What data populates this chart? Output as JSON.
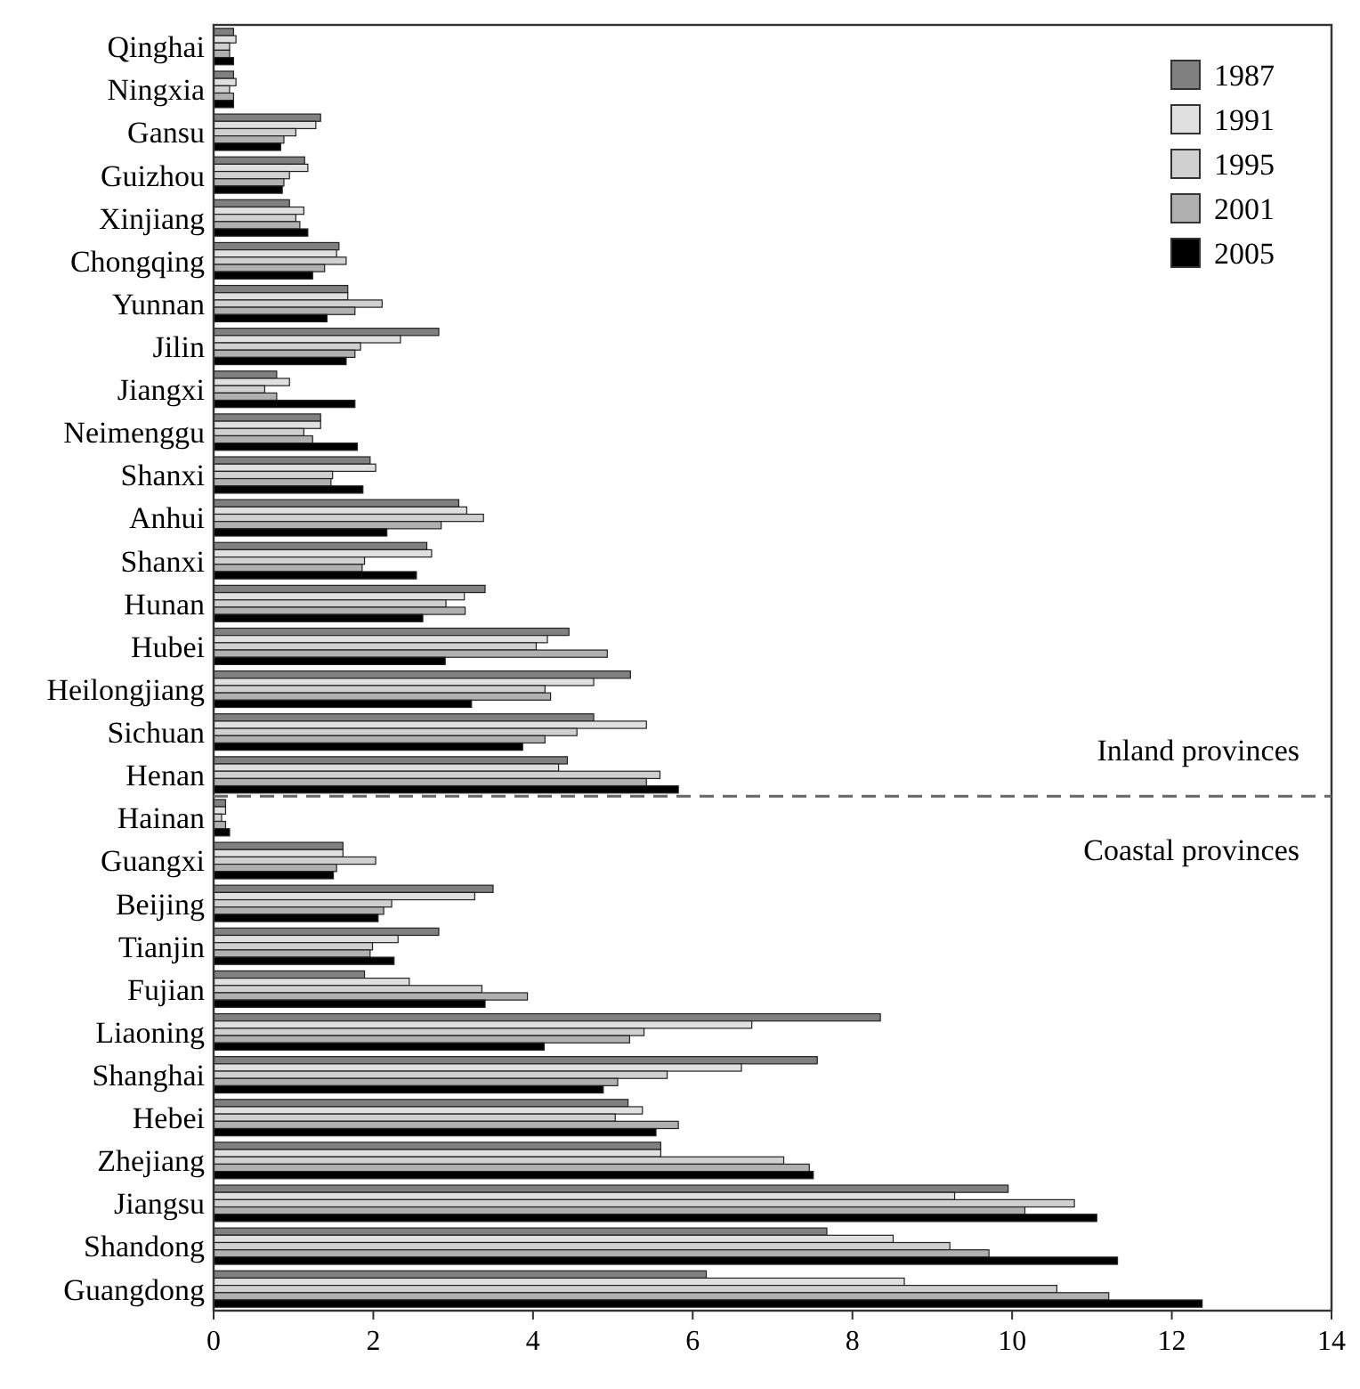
{
  "chart_data": {
    "type": "bar",
    "orientation": "horizontal",
    "categories": [
      "Qinghai",
      "Ningxia",
      "Gansu",
      "Guizhou",
      "Xinjiang",
      "Chongqing",
      "Yunnan",
      "Jilin",
      "Jiangxi",
      "Neimenggu",
      "Shanxi",
      "Anhui",
      "Shanxi",
      "Hunan",
      "Hubei",
      "Heilongjiang",
      "Sichuan",
      "Henan",
      "Hainan",
      "Guangxi",
      "Beijing",
      "Tianjin",
      "Fujian",
      "Liaoning",
      "Shanghai",
      "Hebei",
      "Zhejiang",
      "Jiangsu",
      "Shandong",
      "Guangdong"
    ],
    "series": [
      {
        "name": "1987",
        "color": "#808080",
        "values": [
          0.25,
          0.25,
          1.34,
          1.14,
          0.95,
          1.57,
          1.68,
          2.82,
          0.79,
          1.34,
          1.96,
          3.07,
          2.67,
          3.4,
          4.45,
          5.22,
          4.76,
          4.43,
          0.15,
          1.62,
          3.5,
          2.82,
          1.89,
          8.35,
          7.56,
          5.19,
          5.6,
          9.95,
          7.68,
          6.17
        ]
      },
      {
        "name": "1991",
        "color": "#e0e0e0",
        "values": [
          0.28,
          0.28,
          1.28,
          1.18,
          1.13,
          1.54,
          1.68,
          2.34,
          0.95,
          1.34,
          2.03,
          3.17,
          2.73,
          3.14,
          4.18,
          4.76,
          5.42,
          4.32,
          0.15,
          1.62,
          3.27,
          2.31,
          2.45,
          6.74,
          6.61,
          5.37,
          5.6,
          9.28,
          8.51,
          8.65
        ]
      },
      {
        "name": "1995",
        "color": "#d0d0d0",
        "values": [
          0.2,
          0.2,
          1.03,
          0.95,
          1.03,
          1.66,
          2.11,
          1.84,
          0.64,
          1.13,
          1.49,
          3.38,
          1.89,
          2.91,
          4.04,
          4.15,
          4.55,
          5.59,
          0.1,
          2.03,
          2.23,
          1.99,
          3.36,
          5.39,
          5.68,
          5.03,
          7.14,
          10.78,
          9.22,
          10.56
        ]
      },
      {
        "name": "2001",
        "color": "#b0b0b0",
        "values": [
          0.2,
          0.25,
          0.88,
          0.88,
          1.08,
          1.39,
          1.77,
          1.77,
          0.79,
          1.24,
          1.47,
          2.85,
          1.86,
          3.15,
          4.93,
          4.22,
          4.15,
          5.42,
          0.15,
          1.54,
          2.13,
          1.96,
          3.93,
          5.21,
          5.06,
          5.82,
          7.46,
          10.16,
          9.71,
          11.21
        ]
      },
      {
        "name": "2005",
        "color": "#000000",
        "values": [
          0.25,
          0.25,
          0.84,
          0.86,
          1.18,
          1.24,
          1.42,
          1.66,
          1.77,
          1.8,
          1.87,
          2.17,
          2.54,
          2.62,
          2.9,
          3.23,
          3.87,
          5.82,
          0.2,
          1.5,
          2.06,
          2.26,
          3.4,
          4.14,
          4.88,
          5.54,
          7.51,
          11.06,
          11.32,
          12.38
        ]
      }
    ],
    "xlim": [
      0,
      14
    ],
    "xticks": [
      0,
      2,
      4,
      6,
      8,
      10,
      12,
      14
    ],
    "legend": "top right",
    "annotations": [
      "Inland provinces",
      "Coastal provinces"
    ]
  }
}
